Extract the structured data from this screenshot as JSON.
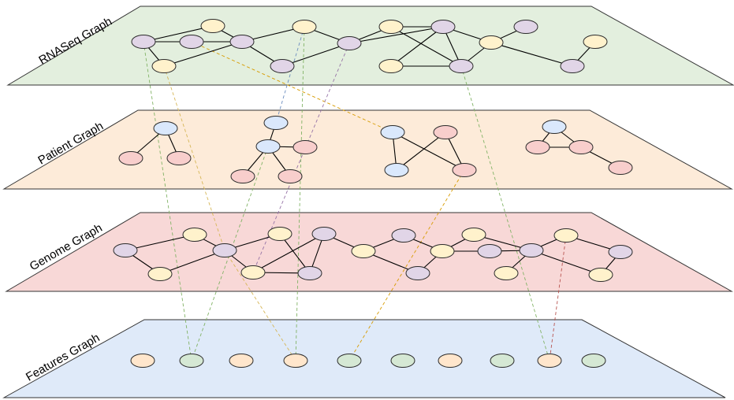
{
  "colors": {
    "outline": "#2b2b2b",
    "yellow": "#fff2cc",
    "purple": "#e1d5e7",
    "blue": "#dae8fc",
    "pink": "#f8cecc",
    "orange": "#ffe6cc",
    "green": "#d5e8d4"
  },
  "layers": [
    {
      "id": "rnaseq",
      "label": "RNASeq Graph",
      "fill": "#e3efde"
    },
    {
      "id": "patient",
      "label": "Patient Graph",
      "fill": "#fdebd9"
    },
    {
      "id": "genome",
      "label": "Genome Graph",
      "fill": "#f8d8d7"
    },
    {
      "id": "features",
      "label": "Features Graph",
      "fill": "#dfeaf9"
    }
  ],
  "node_colors": {
    "rnaseq": [
      "purple",
      "yellow",
      "purple",
      "yellow",
      "purple",
      "yellow",
      "purple",
      "purple",
      "yellow",
      "purple",
      "yellow",
      "purple",
      "yellow",
      "yellow",
      "purple",
      "purple"
    ],
    "patient": [
      "blue",
      "pink",
      "pink",
      "blue",
      "blue",
      "pink",
      "pink",
      "pink",
      "blue",
      "pink",
      "blue",
      "pink",
      "blue",
      "pink",
      "pink",
      "pink"
    ],
    "genome": [
      "purple",
      "yellow",
      "yellow",
      "purple",
      "yellow",
      "yellow",
      "purple",
      "purple",
      "yellow",
      "purple",
      "purple",
      "yellow",
      "yellow",
      "purple",
      "yellow",
      "purple",
      "yellow",
      "purple",
      "yellow",
      "purple"
    ],
    "features": [
      "orange",
      "green",
      "orange",
      "orange",
      "green",
      "green",
      "orange",
      "green",
      "orange",
      "green"
    ]
  },
  "link_colors": [
    "#82b366",
    "#d6b656",
    "#6c8ebf",
    "#82b366",
    "#d79b00",
    "#9673a6",
    "#d79b00",
    "#82b366",
    "#b85450",
    "#d6b656",
    "#82b366"
  ]
}
